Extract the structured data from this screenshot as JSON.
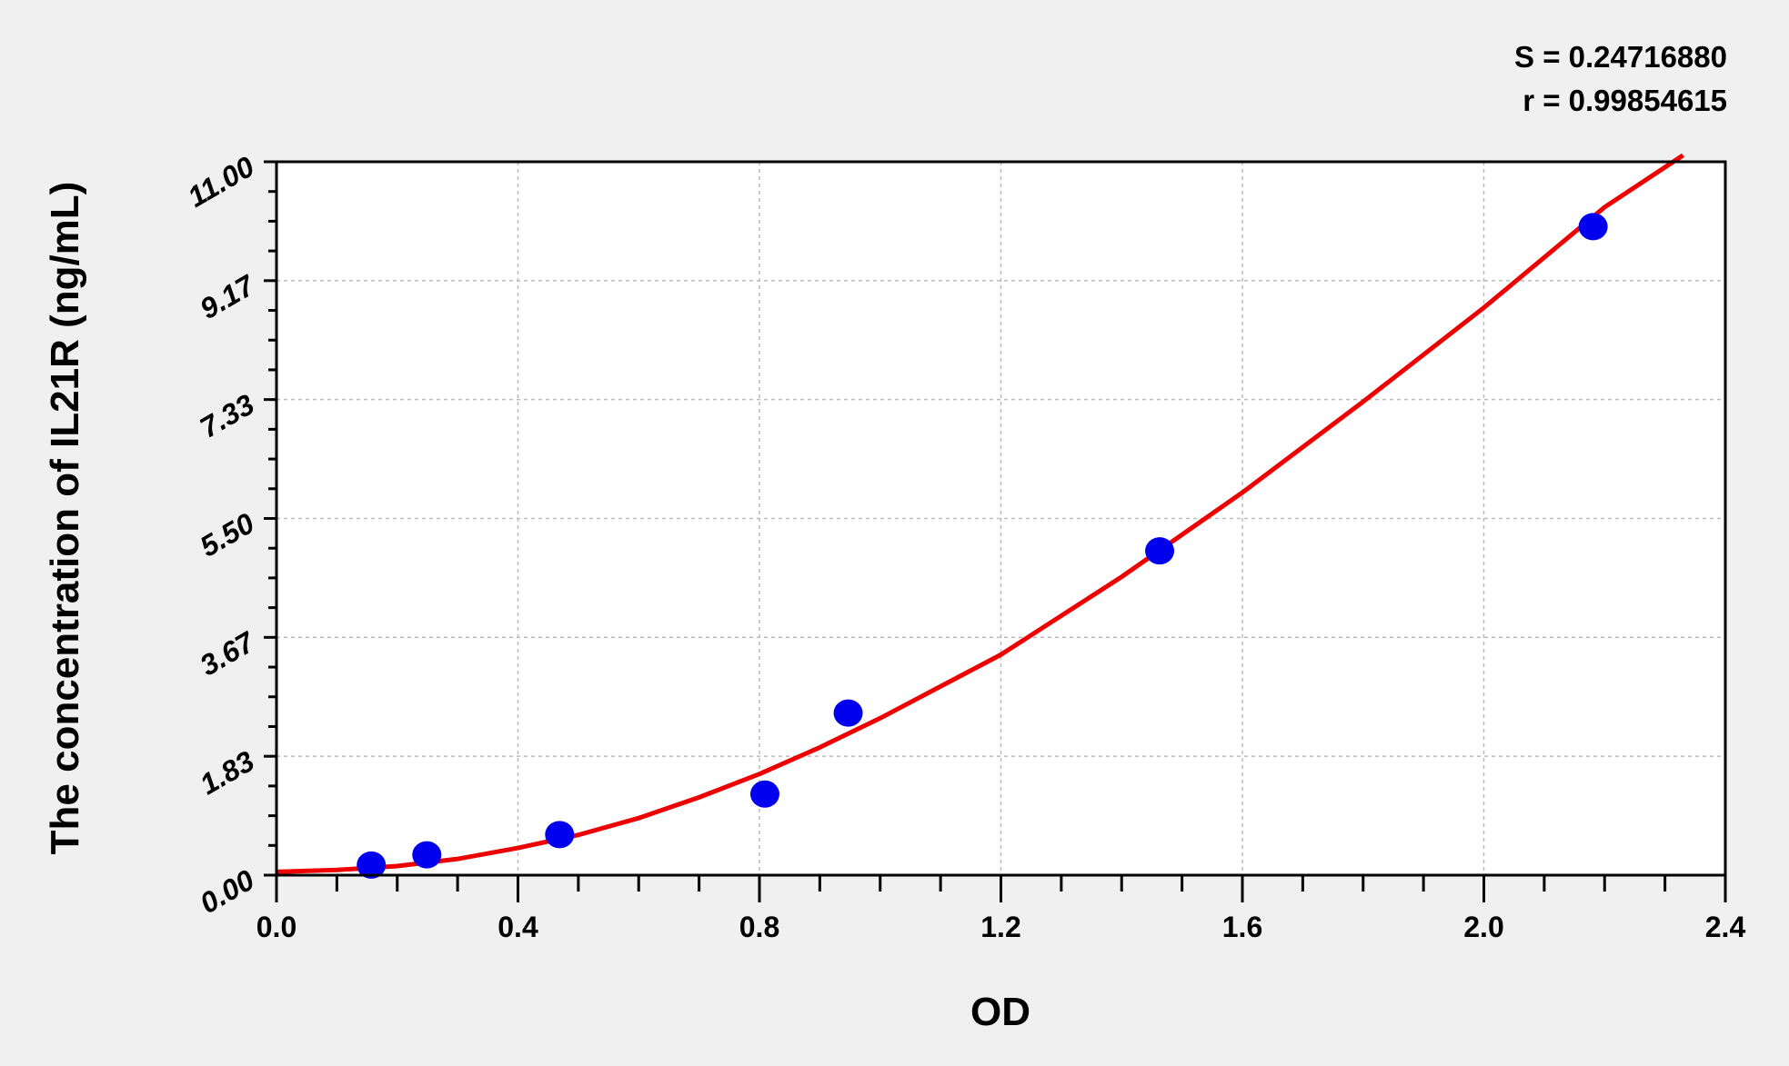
{
  "chart_data": {
    "type": "scatter",
    "title": "",
    "xlabel": "OD",
    "ylabel": "The concentration of IL21R (ng/mL)",
    "xlim": [
      0,
      2.4
    ],
    "ylim": [
      0,
      11
    ],
    "xticks": [
      "0.0",
      "0.4",
      "0.8",
      "1.2",
      "1.6",
      "2.0",
      "2.4"
    ],
    "yticks": [
      "0.00",
      "1.83",
      "3.67",
      "5.50",
      "7.33",
      "9.17",
      "11.00"
    ],
    "grid": true,
    "stats": {
      "S": "S = 0.24716880",
      "r": "r = 0.99854615"
    },
    "points": {
      "x": [
        0.157,
        0.249,
        0.469,
        0.809,
        0.947,
        1.463,
        2.181
      ],
      "y": [
        0.156,
        0.313,
        0.625,
        1.25,
        2.5,
        5.0,
        10.0
      ],
      "color": "#0000ee"
    },
    "fit_curve": {
      "color": "#ee0000",
      "x": [
        0.0,
        0.1,
        0.2,
        0.3,
        0.4,
        0.5,
        0.6,
        0.7,
        0.8,
        0.9,
        1.0,
        1.2,
        1.4,
        1.6,
        1.8,
        2.0,
        2.2,
        2.33
      ],
      "y": [
        0.05,
        0.08,
        0.14,
        0.25,
        0.42,
        0.62,
        0.88,
        1.2,
        1.56,
        1.97,
        2.42,
        3.4,
        4.6,
        5.9,
        7.3,
        8.75,
        10.3,
        11.1
      ]
    }
  }
}
